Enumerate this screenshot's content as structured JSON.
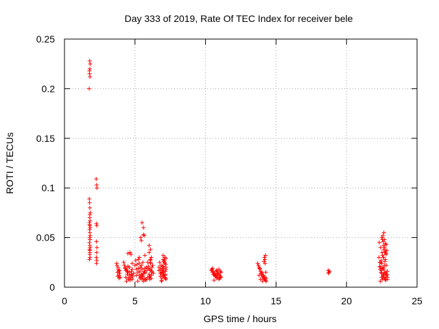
{
  "chart_data": {
    "type": "scatter",
    "title": "Day 333 of 2019, Rate Of TEC Index for receiver bele",
    "xlabel": "GPS time / hours",
    "ylabel": "ROTI / TECUs",
    "xlim": [
      0,
      25
    ],
    "ylim": [
      0,
      0.25
    ],
    "xticks": [
      0,
      5,
      10,
      15,
      20,
      25
    ],
    "xtick_labels": [
      "0",
      "5",
      "10",
      "15",
      "20",
      "25"
    ],
    "yticks": [
      0,
      0.05,
      0.1,
      0.15,
      0.2,
      0.25
    ],
    "ytick_labels": [
      "0",
      "0.05",
      "0.1",
      "0.15",
      "0.2",
      "0.25"
    ],
    "grid": true,
    "marker": "+",
    "color": "#ff0000",
    "series": [
      {
        "x": [
          1.75,
          1.78,
          1.8,
          1.82,
          1.77,
          1.79,
          1.81,
          1.76,
          1.78,
          1.8,
          1.83,
          1.79,
          1.81,
          1.77,
          1.8,
          1.82,
          1.78,
          1.8,
          1.79,
          1.81,
          1.77,
          1.8,
          1.82,
          1.78,
          1.8,
          1.79,
          1.81,
          1.77,
          1.8,
          1.82,
          1.78,
          1.8,
          2.25,
          2.28,
          2.3,
          2.26,
          2.29,
          2.27,
          2.3,
          2.28,
          2.26,
          2.29,
          2.27,
          3.7,
          3.8,
          3.9,
          3.75,
          3.85,
          3.95,
          3.72,
          3.88,
          3.8,
          3.92,
          3.78,
          3.86,
          4.2,
          4.3,
          4.4,
          4.5,
          4.6,
          4.7,
          4.8,
          4.9,
          4.25,
          4.35,
          4.45,
          4.55,
          4.65,
          4.75,
          4.85,
          4.3,
          4.5,
          4.7,
          4.4,
          4.6,
          4.8,
          4.35,
          4.55,
          4.75,
          4.5,
          4.65,
          4.72,
          4.8,
          4.6,
          4.45,
          5.0,
          5.1,
          5.2,
          5.3,
          5.4,
          5.5,
          5.6,
          5.7,
          5.8,
          5.9,
          5.05,
          5.15,
          5.25,
          5.35,
          5.45,
          5.55,
          5.65,
          5.75,
          5.85,
          5.95,
          5.1,
          5.3,
          5.5,
          5.7,
          5.9,
          5.2,
          5.4,
          5.6,
          5.8,
          5.25,
          5.45,
          5.65,
          5.3,
          5.5,
          5.7,
          5.35,
          5.55,
          5.5,
          5.6,
          5.65,
          5.4,
          5.45,
          5.6,
          5.7,
          6.0,
          6.1,
          6.2,
          6.3,
          6.05,
          6.15,
          6.25,
          6.0,
          6.1,
          6.2,
          6.05,
          6.15,
          6.0,
          6.1,
          6.2,
          6.05,
          5.95,
          6.1,
          6.0,
          6.15,
          6.08,
          6.12,
          6.7,
          6.8,
          6.9,
          7.0,
          7.1,
          7.2,
          6.75,
          6.85,
          6.95,
          7.05,
          7.15,
          6.8,
          6.9,
          7.0,
          7.1,
          7.2,
          6.7,
          6.85,
          7.0,
          7.15,
          6.9,
          7.05,
          7.1,
          7.2,
          6.95,
          7.0,
          7.12,
          6.8,
          7.18,
          7.08,
          6.88,
          7.02,
          7.15,
          6.98,
          7.1,
          7.05,
          7.2,
          6.92,
          7.15,
          7.0,
          10.4,
          10.5,
          10.6,
          10.7,
          10.8,
          10.9,
          11.0,
          11.1,
          10.45,
          10.55,
          10.65,
          10.75,
          10.85,
          10.95,
          11.05,
          10.5,
          10.7,
          10.9,
          11.1,
          10.6,
          10.8,
          11.0,
          10.65,
          10.85,
          10.75,
          10.95,
          11.05,
          10.55,
          13.7,
          13.8,
          13.9,
          14.0,
          14.1,
          14.2,
          14.3,
          13.75,
          13.85,
          13.95,
          14.05,
          14.15,
          14.25,
          13.8,
          14.0,
          14.2,
          13.9,
          14.1,
          14.3,
          14.15,
          14.2,
          14.25,
          14.18,
          14.22,
          14.28,
          13.85,
          14.05,
          18.7,
          18.75,
          18.8,
          18.72,
          22.3,
          22.35,
          22.4,
          22.45,
          22.5,
          22.55,
          22.6,
          22.65,
          22.7,
          22.75,
          22.8,
          22.85,
          22.9,
          22.32,
          22.42,
          22.52,
          22.62,
          22.72,
          22.82,
          22.38,
          22.48,
          22.58,
          22.68,
          22.78,
          22.88,
          22.35,
          22.45,
          22.55,
          22.65,
          22.75,
          22.85,
          22.4,
          22.5,
          22.6,
          22.7,
          22.8,
          22.5,
          22.55,
          22.6,
          22.65,
          22.58,
          22.62,
          22.7,
          22.75,
          22.8,
          22.85,
          22.78,
          22.9,
          22.68,
          22.82,
          22.72,
          22.6,
          22.55,
          22.65,
          22.88,
          22.75,
          22.42,
          22.48
        ],
        "y": [
          0.2,
          0.215,
          0.22,
          0.225,
          0.218,
          0.228,
          0.212,
          0.089,
          0.085,
          0.08,
          0.075,
          0.07,
          0.067,
          0.065,
          0.062,
          0.06,
          0.058,
          0.055,
          0.05,
          0.048,
          0.045,
          0.042,
          0.04,
          0.038,
          0.035,
          0.033,
          0.03,
          0.028,
          0.037,
          0.052,
          0.063,
          0.073,
          0.109,
          0.103,
          0.1,
          0.064,
          0.062,
          0.046,
          0.04,
          0.035,
          0.03,
          0.027,
          0.024,
          0.024,
          0.02,
          0.017,
          0.015,
          0.012,
          0.01,
          0.022,
          0.009,
          0.018,
          0.014,
          0.011,
          0.016,
          0.025,
          0.02,
          0.018,
          0.015,
          0.012,
          0.01,
          0.008,
          0.014,
          0.022,
          0.017,
          0.013,
          0.009,
          0.007,
          0.016,
          0.011,
          0.019,
          0.021,
          0.012,
          0.006,
          0.015,
          0.018,
          0.01,
          0.008,
          0.013,
          0.034,
          0.035,
          0.033,
          0.024,
          0.02,
          0.016,
          0.022,
          0.018,
          0.015,
          0.012,
          0.01,
          0.008,
          0.006,
          0.014,
          0.02,
          0.025,
          0.027,
          0.023,
          0.019,
          0.016,
          0.013,
          0.011,
          0.009,
          0.007,
          0.017,
          0.021,
          0.012,
          0.024,
          0.018,
          0.015,
          0.01,
          0.006,
          0.02,
          0.014,
          0.008,
          0.028,
          0.022,
          0.016,
          0.03,
          0.012,
          0.019,
          0.009,
          0.025,
          0.065,
          0.06,
          0.052,
          0.05,
          0.047,
          0.053,
          0.032,
          0.035,
          0.028,
          0.02,
          0.014,
          0.018,
          0.012,
          0.022,
          0.01,
          0.025,
          0.016,
          0.008,
          0.03,
          0.042,
          0.038,
          0.015,
          0.011,
          0.019,
          0.024,
          0.013,
          0.009,
          0.027,
          0.017,
          0.02,
          0.018,
          0.015,
          0.012,
          0.01,
          0.008,
          0.025,
          0.022,
          0.019,
          0.016,
          0.013,
          0.011,
          0.009,
          0.028,
          0.024,
          0.02,
          0.017,
          0.014,
          0.032,
          0.012,
          0.007,
          0.026,
          0.03,
          0.018,
          0.021,
          0.015,
          0.01,
          0.014,
          0.023,
          0.027,
          0.006,
          0.019,
          0.016,
          0.011,
          0.025,
          0.013,
          0.029,
          0.017,
          0.009,
          0.021,
          0.017,
          0.015,
          0.013,
          0.011,
          0.009,
          0.014,
          0.012,
          0.01,
          0.018,
          0.016,
          0.014,
          0.012,
          0.01,
          0.008,
          0.016,
          0.019,
          0.011,
          0.013,
          0.015,
          0.007,
          0.017,
          0.009,
          0.012,
          0.014,
          0.016,
          0.018,
          0.011,
          0.013,
          0.024,
          0.02,
          0.016,
          0.013,
          0.01,
          0.008,
          0.006,
          0.022,
          0.018,
          0.014,
          0.011,
          0.009,
          0.007,
          0.012,
          0.015,
          0.01,
          0.008,
          0.012,
          0.009,
          0.026,
          0.028,
          0.032,
          0.03,
          0.024,
          0.015,
          0.019,
          0.006,
          0.017,
          0.015,
          0.016,
          0.014,
          0.03,
          0.025,
          0.02,
          0.015,
          0.01,
          0.008,
          0.012,
          0.018,
          0.022,
          0.028,
          0.033,
          0.012,
          0.008,
          0.045,
          0.04,
          0.035,
          0.03,
          0.026,
          0.022,
          0.018,
          0.014,
          0.011,
          0.009,
          0.007,
          0.016,
          0.021,
          0.027,
          0.032,
          0.038,
          0.044,
          0.013,
          0.006,
          0.024,
          0.02,
          0.015,
          0.01,
          0.05,
          0.048,
          0.046,
          0.055,
          0.052,
          0.042,
          0.04,
          0.036,
          0.034,
          0.037,
          0.014,
          0.01,
          0.048,
          0.043,
          0.035,
          0.03,
          0.019,
          0.013,
          0.016,
          0.008,
          0.025,
          0.017
        ]
      }
    ]
  }
}
